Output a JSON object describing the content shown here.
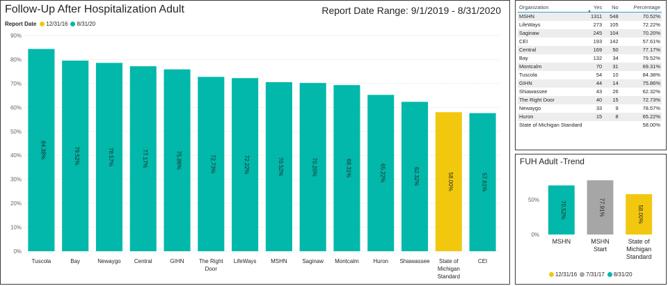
{
  "main": {
    "title": "Follow-Up After Hospitalization Adult",
    "date_range": "Report Date Range: 9/1/2019 - 8/31/2020",
    "legend_title": "Report Date",
    "legend": [
      {
        "label": "12/31/16",
        "color": "#f2c80f"
      },
      {
        "label": "8/31/20",
        "color": "#01b8aa"
      }
    ]
  },
  "table": {
    "columns": [
      "Organization",
      "Yes",
      "No",
      "Percentage"
    ],
    "sort_indicator": "▼",
    "rows": [
      [
        "MSHN",
        "1311",
        "548",
        "70.52%"
      ],
      [
        "LifeWays",
        "273",
        "105",
        "72.22%"
      ],
      [
        "Saginaw",
        "245",
        "104",
        "70.20%"
      ],
      [
        "CEI",
        "193",
        "142",
        "57.61%"
      ],
      [
        "Central",
        "169",
        "50",
        "77.17%"
      ],
      [
        "Bay",
        "132",
        "34",
        "79.52%"
      ],
      [
        "Montcalm",
        "70",
        "31",
        "69.31%"
      ],
      [
        "Tuscola",
        "54",
        "10",
        "84.38%"
      ],
      [
        "GIHN",
        "44",
        "14",
        "75.86%"
      ],
      [
        "Shiawassee",
        "43",
        "26",
        "62.32%"
      ],
      [
        "The Right Door",
        "40",
        "15",
        "72.73%"
      ],
      [
        "Newaygo",
        "33",
        "9",
        "78.57%"
      ],
      [
        "Huron",
        "15",
        "8",
        "65.22%"
      ],
      [
        "State of Michigan Standard",
        "",
        "",
        "58.00%"
      ]
    ]
  },
  "trend": {
    "title": "FUH Adult -Trend",
    "legend": [
      {
        "label": "12/31/16",
        "color": "#f2c80f"
      },
      {
        "label": "7/31/17",
        "color": "#a6a6a6"
      },
      {
        "label": "8/31/20",
        "color": "#01b8aa"
      }
    ]
  },
  "chart_data": [
    {
      "type": "bar",
      "title": "Follow-Up After Hospitalization Adult",
      "ylim": [
        0,
        90
      ],
      "yticks": [
        0,
        10,
        20,
        30,
        40,
        50,
        60,
        70,
        80,
        90
      ],
      "tick_suffix": "%",
      "grid": true,
      "categories": [
        [
          "Tuscola"
        ],
        [
          "Bay"
        ],
        [
          "Newaygo"
        ],
        [
          "Central"
        ],
        [
          "GIHN"
        ],
        [
          "The Right",
          "Door"
        ],
        [
          "LifeWays"
        ],
        [
          "MSHN"
        ],
        [
          "Saginaw"
        ],
        [
          "Montcalm"
        ],
        [
          "Huron"
        ],
        [
          "Shiawassee"
        ],
        [
          "State of",
          "Michigan",
          "Standard"
        ],
        [
          "CEI"
        ]
      ],
      "values": [
        84.38,
        79.52,
        78.57,
        77.17,
        75.86,
        72.73,
        72.22,
        70.52,
        70.2,
        69.31,
        65.22,
        62.32,
        58.0,
        57.61
      ],
      "labels": [
        "84.38%",
        "79.52%",
        "78.57%",
        "77.17%",
        "75.86%",
        "72.73%",
        "72.22%",
        "70.52%",
        "70.20%",
        "69.31%",
        "65.22%",
        "62.32%",
        "58.00%",
        "57.61%"
      ],
      "colors": [
        "#01b8aa",
        "#01b8aa",
        "#01b8aa",
        "#01b8aa",
        "#01b8aa",
        "#01b8aa",
        "#01b8aa",
        "#01b8aa",
        "#01b8aa",
        "#01b8aa",
        "#01b8aa",
        "#01b8aa",
        "#f2c80f",
        "#01b8aa"
      ]
    },
    {
      "type": "bar",
      "title": "FUH Adult -Trend",
      "ylim": [
        0,
        90
      ],
      "yticks": [
        0,
        50
      ],
      "tick_suffix": "%",
      "grid": false,
      "categories": [
        [
          "MSHN"
        ],
        [
          "MSHN",
          "Start"
        ],
        [
          "State of",
          "Michigan",
          "Standard"
        ]
      ],
      "values": [
        70.52,
        77.91,
        58.0
      ],
      "labels": [
        "70.52%",
        "77.91%",
        "58.00%"
      ],
      "colors": [
        "#01b8aa",
        "#a6a6a6",
        "#f2c80f"
      ]
    }
  ]
}
